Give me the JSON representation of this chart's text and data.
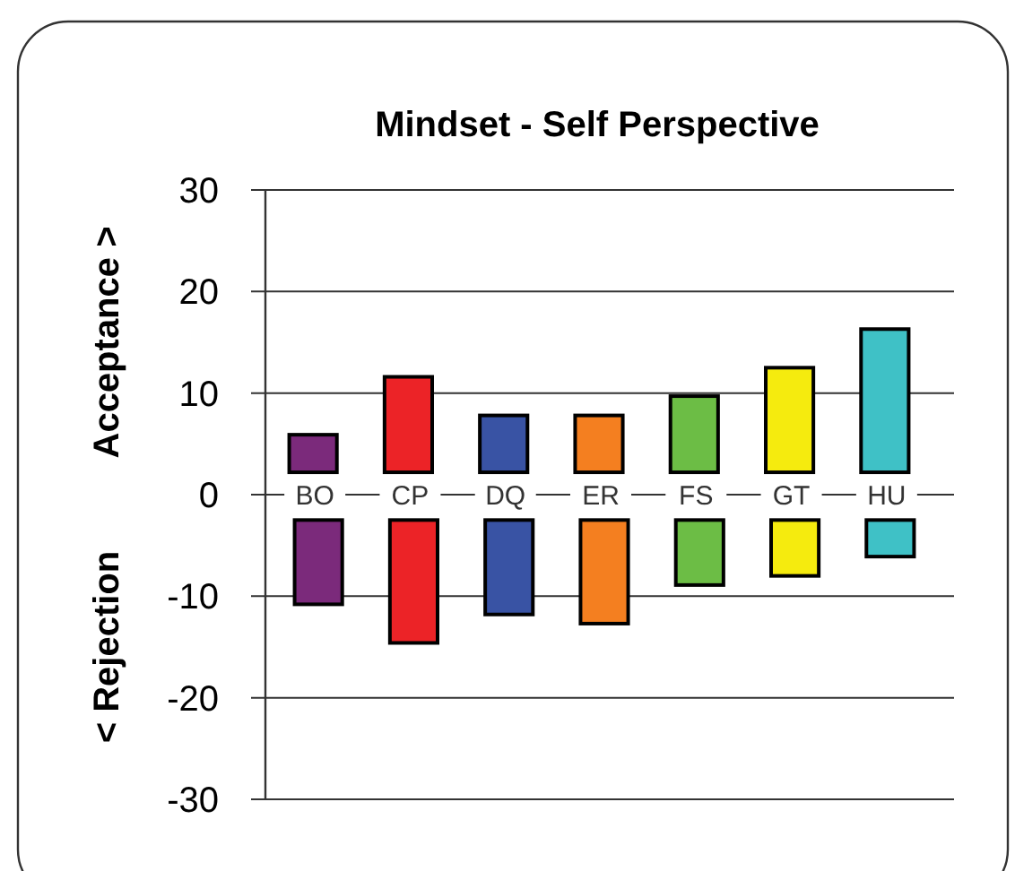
{
  "chart_data": {
    "type": "bar",
    "title": "Mindset - Self Perspective",
    "ylabel": "Acceptance >",
    "annotations": [
      "< Rejection"
    ],
    "categories": [
      "BO",
      "CP",
      "DQ",
      "ER",
      "FS",
      "GT",
      "HU"
    ],
    "series": [
      {
        "colors": [
          "#7b2a7b",
          "#ec2327",
          "#3953a4",
          "#f47f20",
          "#6cbd45",
          "#f5eb0e",
          "#3fc1c6"
        ],
        "base": [
          2.2,
          2.2,
          2.2,
          2.2,
          2.2,
          2.2,
          2.2
        ],
        "values": [
          3.7,
          9.4,
          5.6,
          5.6,
          7.5,
          10.3,
          14.1
        ]
      },
      {
        "colors": [
          "#7b2a7b",
          "#ec2327",
          "#3953a4",
          "#f47f20",
          "#6cbd45",
          "#f5eb0e",
          "#3fc1c6"
        ],
        "base": [
          -2.5,
          -2.5,
          -2.5,
          -2.5,
          -2.5,
          -2.5,
          -2.5
        ],
        "values": [
          -8.3,
          -12.1,
          -9.3,
          -10.2,
          -6.4,
          -5.5,
          -3.6
        ]
      }
    ],
    "ylim": [
      -30,
      30
    ],
    "yticks": [
      -30,
      -20,
      -10,
      0,
      10,
      20,
      30
    ],
    "grid": "y"
  }
}
